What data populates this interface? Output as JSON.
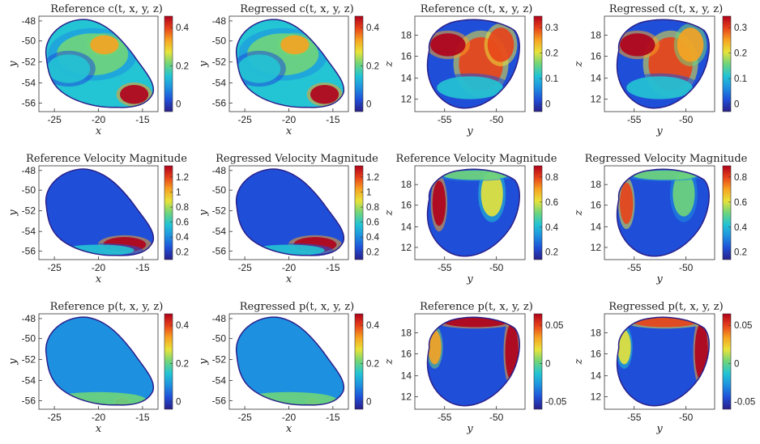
{
  "colormap": [
    "#352a87",
    "#0f5cdd",
    "#1481d6",
    "#06a4ca",
    "#2eb7a4",
    "#87bf77",
    "#d1bb59",
    "#fec832",
    "#f5e31e",
    "#f9fb0e"
  ],
  "panel_colormap": [
    "#2a1f8a",
    "#1f4fd8",
    "#1e90e0",
    "#23c4d4",
    "#6fd57a",
    "#e8e33a",
    "#f7a321",
    "#e8421a",
    "#b0001b"
  ],
  "chart_data": [
    {
      "type": "heatmap",
      "id": "p1",
      "title": "Reference c(t, x, y, z)",
      "xlabel": "x",
      "ylabel": "y",
      "x_ticks": [
        "-25",
        "-20",
        "-15"
      ],
      "y_ticks": [
        "-48",
        "-50",
        "-52",
        "-54",
        "-56"
      ],
      "colorbar_ticks": [
        "0.4",
        "0.2",
        "0"
      ],
      "xlim": [
        -27,
        -14
      ],
      "ylim": [
        -57,
        -47.5
      ]
    },
    {
      "type": "heatmap",
      "id": "p2",
      "title": "Regressed c(t, x, y, z)",
      "xlabel": "x",
      "ylabel": "y",
      "x_ticks": [
        "-25",
        "-20",
        "-15"
      ],
      "y_ticks": [
        "-48",
        "-50",
        "-52",
        "-54",
        "-56"
      ],
      "colorbar_ticks": [
        "0.4",
        "0.2",
        "0"
      ],
      "xlim": [
        -27,
        -14
      ],
      "ylim": [
        -57,
        -47.5
      ]
    },
    {
      "type": "heatmap",
      "id": "p3",
      "title": "Reference c(t, x, y, z)",
      "xlabel": "y",
      "ylabel": "z",
      "x_ticks": [
        "-55",
        "-50"
      ],
      "y_ticks": [
        "18",
        "16",
        "14",
        "12"
      ],
      "colorbar_ticks": [
        "0.3",
        "0.2",
        "0.1",
        "0"
      ],
      "xlim": [
        -57,
        -47
      ],
      "ylim": [
        10.8,
        19.5
      ]
    },
    {
      "type": "heatmap",
      "id": "p4",
      "title": "Regressed c(t, x, y, z)",
      "xlabel": "y",
      "ylabel": "z",
      "x_ticks": [
        "-55",
        "-50"
      ],
      "y_ticks": [
        "18",
        "16",
        "14",
        "12"
      ],
      "colorbar_ticks": [
        "0.3",
        "0.2",
        "0.1",
        "0"
      ],
      "xlim": [
        -57,
        -47
      ],
      "ylim": [
        10.8,
        19.5
      ]
    },
    {
      "type": "heatmap",
      "id": "p5",
      "title": "Reference Velocity Magnitude",
      "xlabel": "x",
      "ylabel": "y",
      "x_ticks": [
        "-25",
        "-20",
        "-15"
      ],
      "y_ticks": [
        "-48",
        "-50",
        "-52",
        "-54",
        "-56"
      ],
      "colorbar_ticks": [
        "1.2",
        "1",
        "0.8",
        "0.6",
        "0.4",
        "0.2"
      ],
      "xlim": [
        -27,
        -14
      ],
      "ylim": [
        -57,
        -47.5
      ]
    },
    {
      "type": "heatmap",
      "id": "p6",
      "title": "Regressed Velocity Magnitude",
      "xlabel": "x",
      "ylabel": "y",
      "x_ticks": [
        "-25",
        "-20",
        "-15"
      ],
      "y_ticks": [
        "-48",
        "-50",
        "-52",
        "-54",
        "-56"
      ],
      "colorbar_ticks": [
        "1.2",
        "1",
        "0.8",
        "0.6",
        "0.4",
        "0.2"
      ],
      "xlim": [
        -27,
        -14
      ],
      "ylim": [
        -57,
        -47.5
      ]
    },
    {
      "type": "heatmap",
      "id": "p7",
      "title": "Reference Velocity Magnitude",
      "xlabel": "y",
      "ylabel": "z",
      "x_ticks": [
        "-55",
        "-50"
      ],
      "y_ticks": [
        "18",
        "16",
        "14",
        "12"
      ],
      "colorbar_ticks": [
        "0.8",
        "0.6",
        "0.4",
        "0.2"
      ],
      "xlim": [
        -57,
        -47
      ],
      "ylim": [
        10.8,
        19.5
      ]
    },
    {
      "type": "heatmap",
      "id": "p8",
      "title": "Regressed Velocity Magnitude",
      "xlabel": "y",
      "ylabel": "z",
      "x_ticks": [
        "-55",
        "-50"
      ],
      "y_ticks": [
        "18",
        "16",
        "14",
        "12"
      ],
      "colorbar_ticks": [
        "0.8",
        "0.6",
        "0.4",
        "0.2"
      ],
      "xlim": [
        -57,
        -47
      ],
      "ylim": [
        10.8,
        19.5
      ]
    },
    {
      "type": "heatmap",
      "id": "p9",
      "title": "Reference p(t, x, y, z)",
      "xlabel": "x",
      "ylabel": "y",
      "x_ticks": [
        "-25",
        "-20",
        "-15"
      ],
      "y_ticks": [
        "-48",
        "-50",
        "-52",
        "-54",
        "-56"
      ],
      "colorbar_ticks": [
        "0.4",
        "0.2",
        "0"
      ],
      "xlim": [
        -27,
        -14
      ],
      "ylim": [
        -57,
        -47.5
      ]
    },
    {
      "type": "heatmap",
      "id": "p10",
      "title": "Regressed p(t, x, y, z)",
      "xlabel": "x",
      "ylabel": "y",
      "x_ticks": [
        "-25",
        "-20",
        "-15"
      ],
      "y_ticks": [
        "-48",
        "-50",
        "-52",
        "-54",
        "-56"
      ],
      "colorbar_ticks": [
        "0.4",
        "0.2",
        "0"
      ],
      "xlim": [
        -27,
        -14
      ],
      "ylim": [
        -57,
        -47.5
      ]
    },
    {
      "type": "heatmap",
      "id": "p11",
      "title": "Reference p(t, x, y, z)",
      "xlabel": "y",
      "ylabel": "z",
      "x_ticks": [
        "-55",
        "-50"
      ],
      "y_ticks": [
        "18",
        "16",
        "14",
        "12"
      ],
      "colorbar_ticks": [
        "0.05",
        "0",
        "-0.05"
      ],
      "xlim": [
        -57,
        -47
      ],
      "ylim": [
        10.8,
        19.5
      ]
    },
    {
      "type": "heatmap",
      "id": "p12",
      "title": "Regressed p(t, x, y, z)",
      "xlabel": "y",
      "ylabel": "z",
      "x_ticks": [
        "-55",
        "-50"
      ],
      "y_ticks": [
        "18",
        "16",
        "14",
        "12"
      ],
      "colorbar_ticks": [
        "0.05",
        "0",
        "-0.05"
      ],
      "xlim": [
        -57,
        -47
      ],
      "ylim": [
        10.8,
        19.5
      ]
    }
  ]
}
